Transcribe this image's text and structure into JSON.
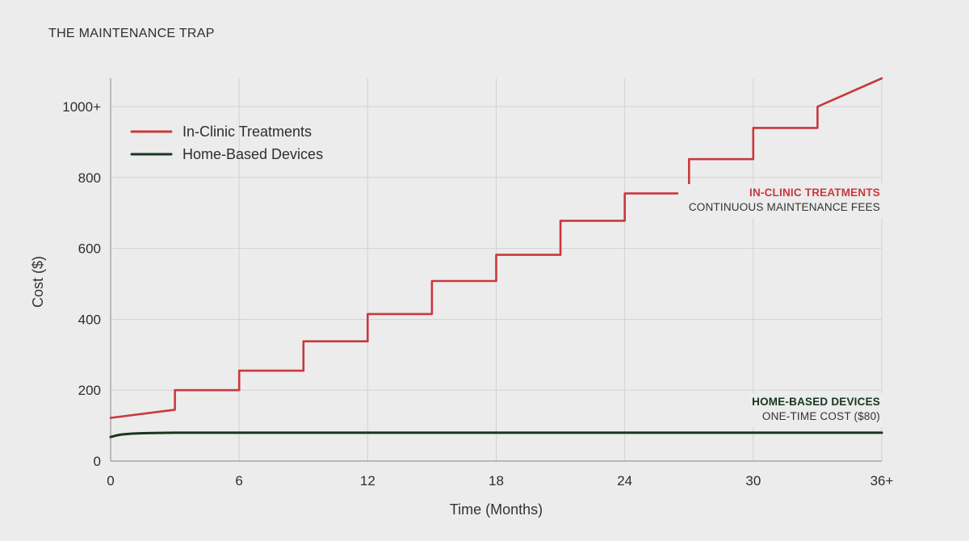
{
  "title": "THE MAINTENANCE TRAP",
  "colors": {
    "background": "#ececec",
    "grid": "#d2d2d2",
    "in_clinic": "#c9383c",
    "home_based": "#17361f"
  },
  "chart_data": {
    "type": "line",
    "title": "THE MAINTENANCE TRAP",
    "xlabel": "Time (Months)",
    "ylabel": "Cost ($)",
    "xlim": [
      0,
      36
    ],
    "ylim": [
      0,
      1080
    ],
    "x_ticks": [
      0,
      6,
      12,
      18,
      24,
      30,
      36
    ],
    "x_tick_labels": [
      "0",
      "6",
      "12",
      "18",
      "24",
      "30",
      "36+"
    ],
    "y_ticks": [
      0,
      200,
      400,
      600,
      800,
      1000
    ],
    "y_tick_labels": [
      "0",
      "200",
      "400",
      "600",
      "800",
      "1000+"
    ],
    "grid": true,
    "legend_position": "top-left",
    "series": [
      {
        "name": "In-Clinic Treatments",
        "color": "#c9383c",
        "x": [
          0,
          3,
          3,
          6,
          6,
          9,
          9,
          12,
          12,
          15,
          15,
          18,
          18,
          21,
          21,
          24,
          24,
          27,
          27,
          30,
          30,
          33,
          33,
          36
        ],
        "y": [
          122,
          145,
          200,
          200,
          255,
          255,
          338,
          338,
          415,
          415,
          508,
          508,
          582,
          582,
          678,
          678,
          755,
          755,
          852,
          852,
          940,
          940,
          1000,
          1080
        ]
      },
      {
        "name": "Home-Based Devices",
        "color": "#17361f",
        "x": [
          0,
          0.25,
          0.5,
          1,
          1.5,
          2,
          3,
          4,
          6,
          12,
          18,
          24,
          30,
          36
        ],
        "y": [
          68,
          72,
          75,
          77.5,
          78.5,
          79.3,
          80,
          80,
          80,
          80,
          80,
          80,
          80,
          80
        ]
      }
    ],
    "annotations": [
      {
        "series": "In-Clinic Treatments",
        "heading": "IN-CLINIC TREATMENTS",
        "text": "CONTINUOUS MAINTENANCE FEES"
      },
      {
        "series": "Home-Based Devices",
        "heading": "HOME-BASED DEVICES",
        "text": "ONE-TIME COST ($80)"
      }
    ]
  }
}
